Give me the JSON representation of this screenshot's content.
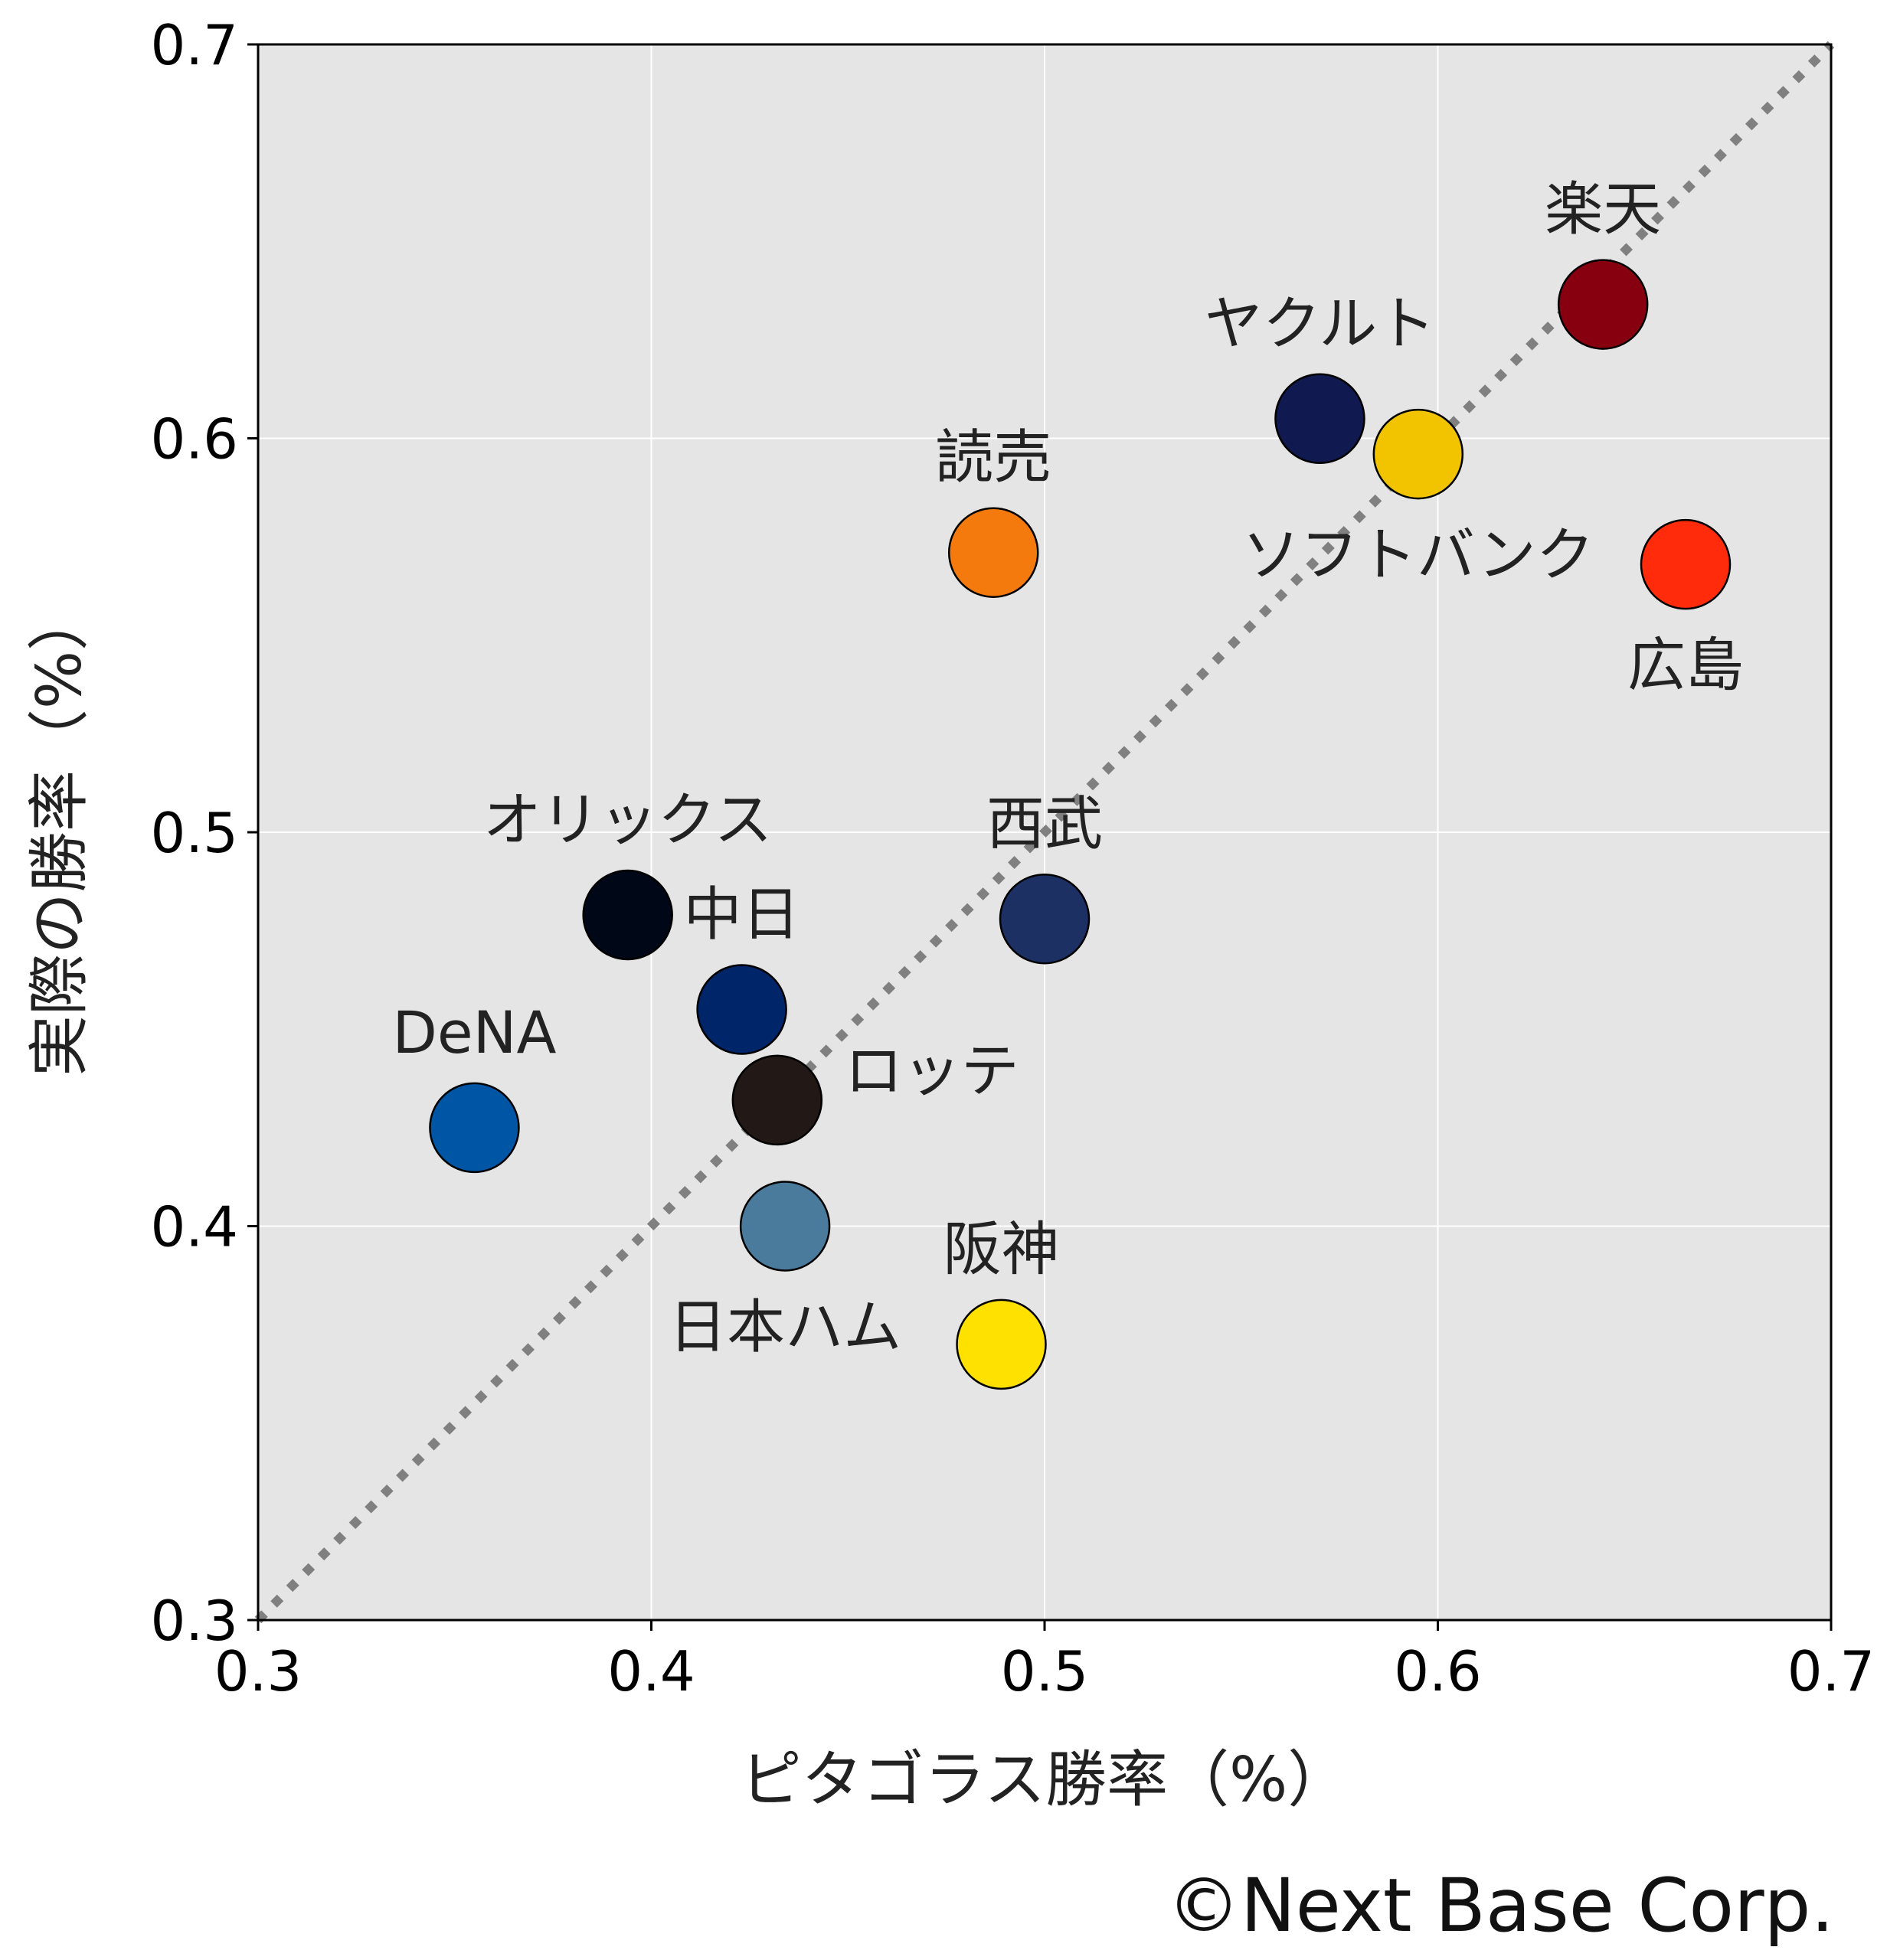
{
  "chart_data": {
    "type": "scatter",
    "xlabel": "ピタゴラス勝率（%）",
    "ylabel": "実際の勝率（%）",
    "xlim": [
      0.3,
      0.7
    ],
    "ylim": [
      0.3,
      0.7
    ],
    "xticks": [
      "0.3",
      "0.4",
      "0.5",
      "0.6",
      "0.7"
    ],
    "yticks": [
      "0.3",
      "0.4",
      "0.5",
      "0.6",
      "0.7"
    ],
    "grid": true,
    "background_color": "#e5e5e5",
    "reference_line": {
      "style": "dotted",
      "color": "#808080",
      "from": [
        0.3,
        0.3
      ],
      "to": [
        0.7,
        0.7
      ]
    },
    "points": [
      {
        "label": "楽天",
        "x": 0.642,
        "y": 0.634,
        "color": "#870010",
        "label_pos": "above"
      },
      {
        "label": "ヤクルト",
        "x": 0.57,
        "y": 0.605,
        "color": "#101950",
        "label_pos": "above"
      },
      {
        "label": "ソフトバンク",
        "x": 0.595,
        "y": 0.596,
        "color": "#f2c400",
        "label_pos": "below"
      },
      {
        "label": "読売",
        "x": 0.487,
        "y": 0.571,
        "color": "#f57a0e",
        "label_pos": "above"
      },
      {
        "label": "広島",
        "x": 0.663,
        "y": 0.568,
        "color": "#ff2b0a",
        "label_pos": "below"
      },
      {
        "label": "オリックス",
        "x": 0.394,
        "y": 0.479,
        "color": "#000817",
        "label_pos": "above"
      },
      {
        "label": "西武",
        "x": 0.5,
        "y": 0.478,
        "color": "#1c3064",
        "label_pos": "above"
      },
      {
        "label": "中日",
        "x": 0.423,
        "y": 0.455,
        "color": "#002569",
        "label_pos": "above"
      },
      {
        "label": "ロッテ",
        "x": 0.432,
        "y": 0.432,
        "color": "#221815",
        "label_pos": "right"
      },
      {
        "label": "DeNA",
        "x": 0.355,
        "y": 0.425,
        "color": "#0055a5",
        "label_pos": "above"
      },
      {
        "label": "日本ハム",
        "x": 0.434,
        "y": 0.4,
        "color": "#4b7b9c",
        "label_pos": "below"
      },
      {
        "label": "阪神",
        "x": 0.489,
        "y": 0.37,
        "color": "#ffe100",
        "label_pos": "above"
      }
    ]
  },
  "credit": "©Next Base Corp."
}
